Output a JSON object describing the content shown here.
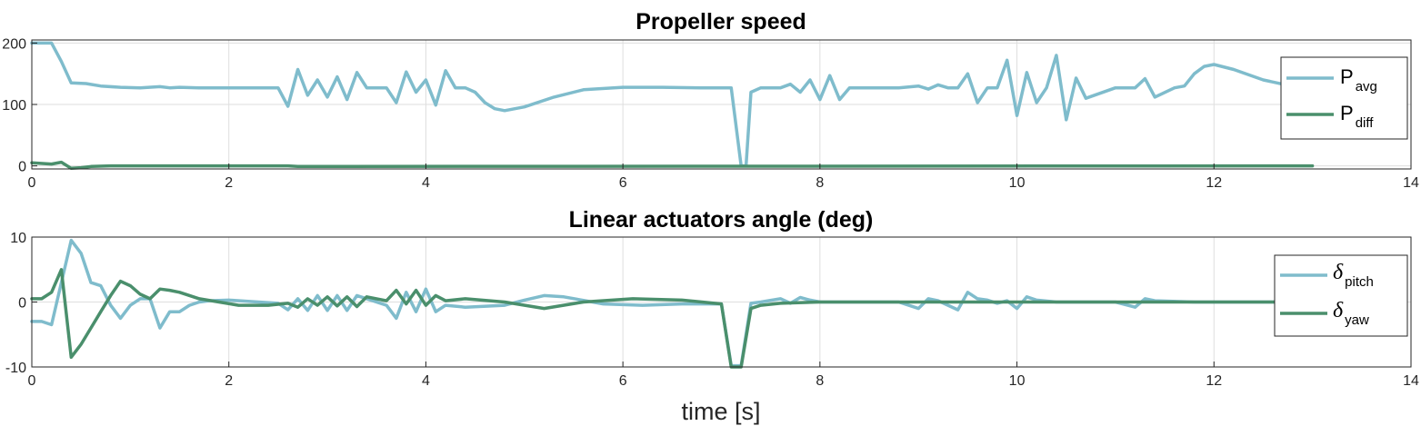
{
  "chart_data": [
    {
      "type": "line",
      "title": "Propeller speed",
      "xlabel": "",
      "ylabel": "",
      "xlim": [
        0,
        14
      ],
      "ylim": [
        -5,
        205
      ],
      "xticks": [
        0,
        2,
        4,
        6,
        8,
        10,
        12,
        14
      ],
      "yticks": [
        0,
        100,
        200
      ],
      "grid": true,
      "legend": "top-right",
      "series": [
        {
          "name": "P",
          "subscript": "avg",
          "color": "#7fbccc",
          "x": [
            0,
            0.2,
            0.3,
            0.4,
            0.55,
            0.7,
            0.9,
            1.1,
            1.3,
            1.4,
            1.5,
            1.7,
            2.0,
            2.3,
            2.5,
            2.6,
            2.7,
            2.8,
            2.9,
            3.0,
            3.1,
            3.2,
            3.3,
            3.4,
            3.6,
            3.7,
            3.8,
            3.9,
            4.0,
            4.1,
            4.2,
            4.3,
            4.4,
            4.5,
            4.6,
            4.7,
            4.8,
            5.0,
            5.3,
            5.6,
            6.0,
            6.4,
            6.8,
            7.1,
            7.2,
            7.25,
            7.3,
            7.4,
            7.6,
            7.7,
            7.8,
            7.9,
            8.0,
            8.1,
            8.2,
            8.3,
            8.4,
            8.6,
            8.8,
            9.0,
            9.1,
            9.2,
            9.3,
            9.4,
            9.5,
            9.6,
            9.7,
            9.8,
            9.9,
            10.0,
            10.1,
            10.2,
            10.3,
            10.4,
            10.5,
            10.6,
            10.7,
            11.0,
            11.2,
            11.3,
            11.4,
            11.6,
            11.7,
            11.8,
            11.9,
            12.0,
            12.2,
            12.5,
            12.7
          ],
          "values": [
            200,
            200,
            170,
            135,
            134,
            130,
            128,
            127,
            129,
            127,
            128,
            127,
            127,
            127,
            127,
            97,
            157,
            115,
            140,
            112,
            145,
            108,
            152,
            127,
            127,
            103,
            153,
            120,
            140,
            99,
            155,
            127,
            127,
            120,
            103,
            93,
            90,
            96,
            112,
            124,
            128,
            128,
            127,
            127,
            0,
            0,
            120,
            127,
            127,
            133,
            120,
            140,
            108,
            147,
            108,
            127,
            127,
            127,
            127,
            130,
            125,
            132,
            127,
            127,
            150,
            103,
            127,
            127,
            172,
            82,
            152,
            103,
            127,
            180,
            75,
            143,
            110,
            127,
            127,
            142,
            112,
            127,
            130,
            150,
            162,
            165,
            157,
            140,
            133
          ]
        },
        {
          "name": "P",
          "subscript": "diff",
          "color": "#4a8f6c",
          "x": [
            0,
            0.2,
            0.3,
            0.4,
            0.5,
            0.6,
            0.8,
            1.0,
            2.6,
            2.7,
            13.0
          ],
          "values": [
            5,
            3,
            6,
            -4,
            -3,
            -1,
            0,
            0,
            0,
            -1,
            0
          ]
        }
      ]
    },
    {
      "type": "line",
      "title": "Linear actuators angle (deg)",
      "xlabel": "time [s]",
      "ylabel": "",
      "xlim": [
        0,
        14
      ],
      "ylim": [
        -10,
        10
      ],
      "xticks": [
        0,
        2,
        4,
        6,
        8,
        10,
        12,
        14
      ],
      "yticks": [
        -10,
        0,
        10
      ],
      "grid": true,
      "legend": "top-right",
      "series": [
        {
          "name": "δ",
          "subscript": "pitch",
          "color": "#7fbccc",
          "x": [
            0,
            0.1,
            0.2,
            0.3,
            0.4,
            0.5,
            0.6,
            0.7,
            0.8,
            0.9,
            1.0,
            1.1,
            1.2,
            1.3,
            1.4,
            1.5,
            1.6,
            1.7,
            1.8,
            2.0,
            2.3,
            2.5,
            2.6,
            2.7,
            2.8,
            2.9,
            3.0,
            3.1,
            3.2,
            3.3,
            3.4,
            3.6,
            3.7,
            3.8,
            3.9,
            4.0,
            4.1,
            4.2,
            4.4,
            4.8,
            5.0,
            5.2,
            5.4,
            5.8,
            6.2,
            6.6,
            7.0,
            7.1,
            7.2,
            7.3,
            7.4,
            7.6,
            7.7,
            7.8,
            7.9,
            8.0,
            8.4,
            8.8,
            9.0,
            9.1,
            9.2,
            9.4,
            9.5,
            9.6,
            9.7,
            9.8,
            9.9,
            10.0,
            10.1,
            10.2,
            10.4,
            10.8,
            11.0,
            11.2,
            11.3,
            11.4,
            11.8,
            12.2,
            12.7
          ],
          "values": [
            -3,
            -3,
            -3.5,
            3,
            9.5,
            7.5,
            3,
            2.5,
            -0.5,
            -2.5,
            -0.5,
            0.5,
            0.5,
            -4,
            -1.5,
            -1.5,
            -0.5,
            0,
            0.2,
            0.3,
            0,
            -0.2,
            -1.2,
            0.5,
            -1.3,
            1,
            -1.3,
            1,
            -1.3,
            1,
            0.5,
            -0.5,
            -2.5,
            1.5,
            -1.5,
            2,
            -1.5,
            -0.5,
            -0.8,
            -0.5,
            0.3,
            1,
            0.8,
            -0.3,
            -0.5,
            -0.3,
            -0.3,
            -9.8,
            -9.8,
            -0.2,
            0,
            0.5,
            -0.2,
            0.7,
            0.3,
            0,
            0,
            0,
            -1,
            0.5,
            0.2,
            -1.2,
            1.5,
            0.5,
            0.3,
            -0.2,
            0.2,
            -1,
            0.8,
            0.3,
            0,
            0,
            0,
            -0.8,
            0.5,
            0.2,
            0,
            0,
            0
          ]
        },
        {
          "name": "δ",
          "subscript": "yaw",
          "color": "#4a8f6c",
          "x": [
            0,
            0.1,
            0.2,
            0.3,
            0.4,
            0.5,
            0.6,
            0.7,
            0.8,
            0.9,
            1.0,
            1.1,
            1.2,
            1.3,
            1.4,
            1.5,
            1.7,
            1.9,
            2.1,
            2.4,
            2.6,
            2.7,
            2.8,
            2.9,
            3.0,
            3.1,
            3.2,
            3.3,
            3.4,
            3.6,
            3.7,
            3.8,
            3.9,
            4.0,
            4.1,
            4.2,
            4.4,
            4.8,
            5.2,
            5.6,
            6.1,
            6.6,
            7.0,
            7.1,
            7.2,
            7.3,
            7.4,
            7.6,
            8.0,
            10.0,
            11.0,
            12.0,
            13.0
          ],
          "values": [
            0.5,
            0.5,
            1.5,
            5,
            -8.5,
            -6.5,
            -4,
            -1.5,
            1,
            3.2,
            2.5,
            1.2,
            0.5,
            2,
            1.8,
            1.5,
            0.5,
            0,
            -0.5,
            -0.5,
            -0.2,
            -0.8,
            0.5,
            -0.5,
            0.8,
            -0.6,
            0.8,
            -0.7,
            0.8,
            0.2,
            1.8,
            -0.3,
            1.8,
            -0.5,
            1,
            0.2,
            0.5,
            0,
            -1,
            0,
            0.5,
            0.3,
            -0.3,
            -10,
            -10,
            -1,
            -0.5,
            -0.2,
            0,
            0,
            0,
            0,
            0
          ]
        }
      ]
    }
  ]
}
